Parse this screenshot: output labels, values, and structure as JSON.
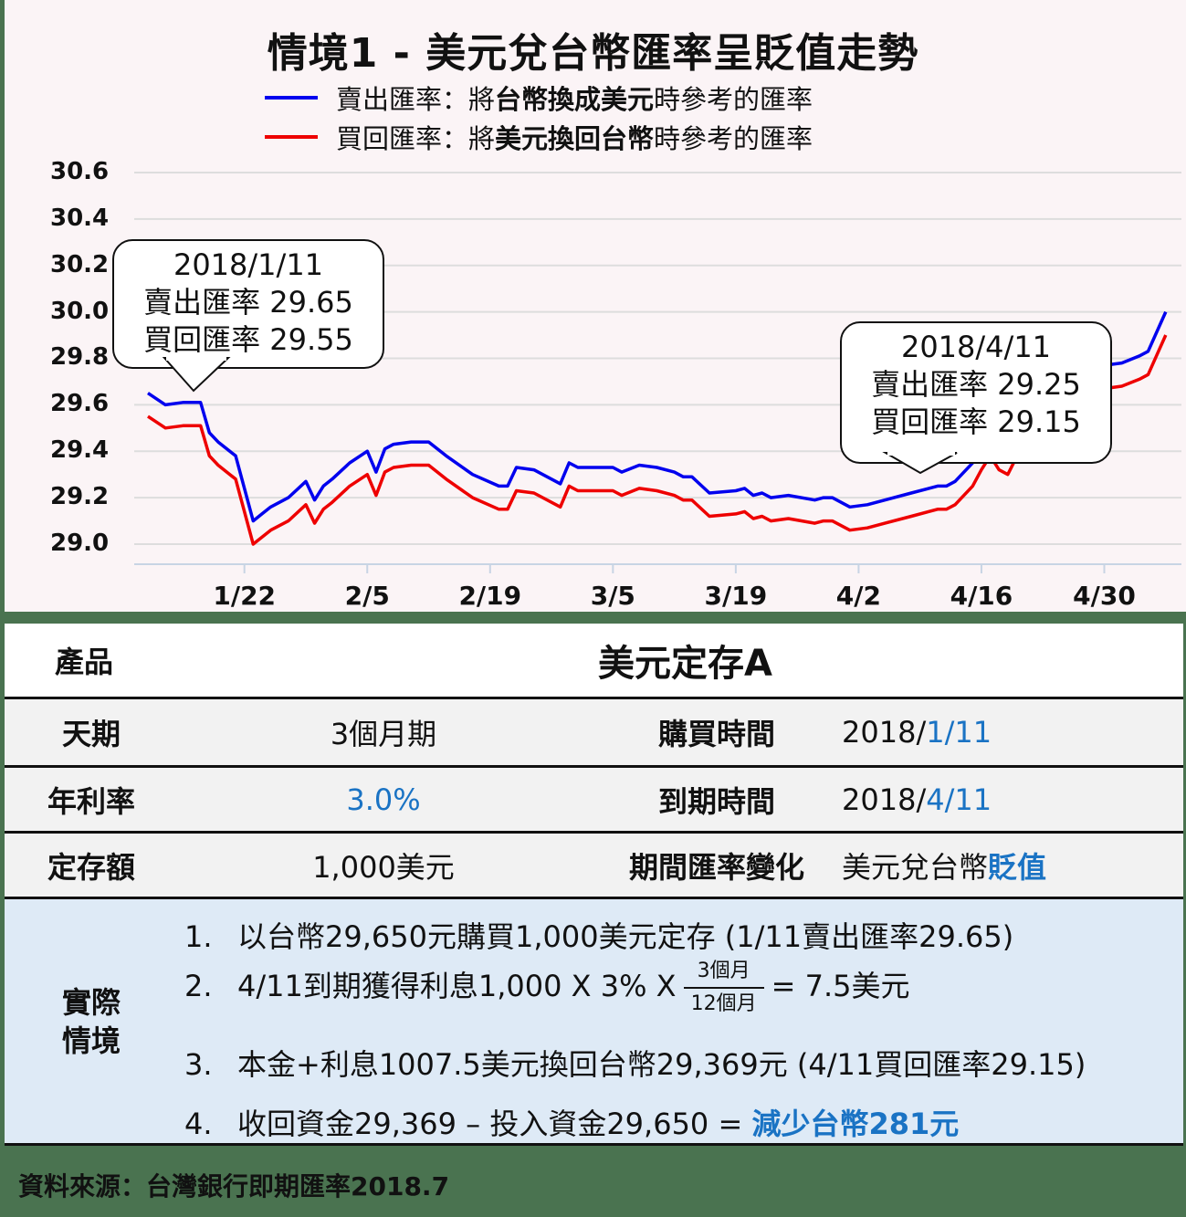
{
  "chart": {
    "title": "情境1 - 美元兌台幣匯率呈貶值走勢",
    "legend": [
      {
        "color": "#0000ee",
        "prefix": "賣出匯率：將",
        "bold": "台幣換成美元",
        "suffix": "時參考的匯率"
      },
      {
        "color": "#ee0000",
        "prefix": "買回匯率：將",
        "bold": "美元換回台幣",
        "suffix": "時參考的匯率"
      }
    ],
    "callouts": [
      {
        "date": "2018/1/11",
        "sell": "賣出匯率 29.65",
        "buy": "買回匯率 29.55"
      },
      {
        "date": "2018/4/11",
        "sell": "賣出匯率 29.25",
        "buy": "買回匯率 29.15"
      }
    ]
  },
  "chart_data": {
    "type": "line",
    "title": "情境1 - 美元兌台幣匯率呈貶值走勢",
    "xlabel": "",
    "ylabel": "",
    "ylim": [
      29.0,
      30.6
    ],
    "yticks": [
      "30.6",
      "30.4",
      "30.2",
      "30.0",
      "29.8",
      "29.6",
      "29.4",
      "29.2",
      "29.0"
    ],
    "xticks": [
      "1/22",
      "2/5",
      "2/19",
      "3/5",
      "3/19",
      "4/2",
      "4/16",
      "4/30"
    ],
    "grid": true,
    "legend_position": "top",
    "x": [
      "1/11",
      "1/13",
      "1/15",
      "1/17",
      "1/18",
      "1/19",
      "1/21",
      "1/23",
      "1/24",
      "1/25",
      "1/27",
      "1/29",
      "1/30",
      "1/31",
      "2/1",
      "2/3",
      "2/5",
      "2/6",
      "2/7",
      "2/8",
      "2/10",
      "2/12",
      "2/14",
      "2/17",
      "2/20",
      "2/21",
      "2/22",
      "2/24",
      "2/27",
      "2/28",
      "3/1",
      "3/3",
      "3/5",
      "3/6",
      "3/8",
      "3/10",
      "3/12",
      "3/13",
      "3/14",
      "3/16",
      "3/19",
      "3/20",
      "3/21",
      "3/22",
      "3/23",
      "3/25",
      "3/28",
      "3/29",
      "3/30",
      "4/1",
      "4/3",
      "4/5",
      "4/8",
      "4/11",
      "4/12",
      "4/13",
      "4/15",
      "4/16",
      "4/17",
      "4/18",
      "4/19",
      "4/21",
      "4/24",
      "4/26",
      "4/28",
      "4/30",
      "5/2",
      "5/4",
      "5/5",
      "5/7"
    ],
    "series": [
      {
        "name": "賣出匯率",
        "color": "#0000ee",
        "values": [
          29.65,
          29.6,
          29.61,
          29.61,
          29.48,
          29.44,
          29.38,
          29.1,
          29.13,
          29.16,
          29.2,
          29.27,
          29.19,
          29.25,
          29.28,
          29.35,
          29.4,
          29.31,
          29.41,
          29.43,
          29.44,
          29.44,
          29.38,
          29.3,
          29.25,
          29.25,
          29.33,
          29.32,
          29.26,
          29.35,
          29.33,
          29.33,
          29.33,
          29.31,
          29.34,
          29.33,
          29.31,
          29.29,
          29.29,
          29.22,
          29.23,
          29.24,
          29.21,
          29.22,
          29.2,
          29.21,
          29.19,
          29.2,
          29.2,
          29.16,
          29.17,
          29.19,
          29.22,
          29.25,
          29.25,
          29.27,
          29.35,
          29.42,
          29.48,
          29.5,
          29.48,
          29.55,
          29.65,
          29.7,
          29.8,
          29.77,
          29.78,
          29.81,
          29.83,
          30.0
        ]
      },
      {
        "name": "買回匯率",
        "color": "#ee0000",
        "values": [
          29.55,
          29.5,
          29.51,
          29.51,
          29.38,
          29.34,
          29.28,
          29.0,
          29.03,
          29.06,
          29.1,
          29.17,
          29.09,
          29.15,
          29.18,
          29.25,
          29.3,
          29.21,
          29.31,
          29.33,
          29.34,
          29.34,
          29.28,
          29.2,
          29.15,
          29.15,
          29.23,
          29.22,
          29.16,
          29.25,
          29.23,
          29.23,
          29.23,
          29.21,
          29.24,
          29.23,
          29.21,
          29.19,
          29.19,
          29.12,
          29.13,
          29.14,
          29.11,
          29.12,
          29.1,
          29.11,
          29.09,
          29.1,
          29.1,
          29.06,
          29.07,
          29.09,
          29.12,
          29.15,
          29.15,
          29.17,
          29.25,
          29.32,
          29.38,
          29.32,
          29.3,
          29.45,
          29.55,
          29.6,
          29.7,
          29.67,
          29.68,
          29.71,
          29.73,
          29.9
        ]
      }
    ],
    "annotations": [
      "2018/1/11 賣出匯率 29.65 買回匯率 29.55",
      "2018/4/11 賣出匯率 29.25 買回匯率 29.15"
    ]
  },
  "table": {
    "product_label": "產品",
    "product_value": "美元定存A",
    "rows": [
      {
        "l1": "天期",
        "v1": "3個月期",
        "l2": "購買時間",
        "v2_plain": "2018/",
        "v2_blue": "1/11"
      },
      {
        "l1": "年利率",
        "v1": "3.0%",
        "l2": "到期時間",
        "v2_plain": "2018/",
        "v2_blue": "4/11"
      },
      {
        "l1": "定存額",
        "v1": "1,000美元",
        "l2": "期間匯率變化",
        "v2_plain": "美元兌台幣",
        "v2_blue": "貶值"
      }
    ],
    "scenario": {
      "label_line1": "實際",
      "label_line2": "情境",
      "steps": [
        {
          "num": "1.",
          "text": "以台幣29,650元購買1,000美元定存 (1/11賣出匯率29.65)"
        },
        {
          "num": "2.",
          "text_before": "4/11到期獲得利息1,000 X 3% X",
          "frac_num": "3個月",
          "frac_den": "12個月",
          "text_after": "= 7.5美元"
        },
        {
          "num": "3.",
          "text": "本金+利息1007.5美元換回台幣29,369元 (4/11買回匯率29.15)"
        },
        {
          "num": "4.",
          "text_before": "收回資金29,369 – 投入資金29,650 = ",
          "highlight": "減少台幣281元"
        }
      ]
    }
  },
  "source": "資料來源：台灣銀行即期匯率2018.7"
}
